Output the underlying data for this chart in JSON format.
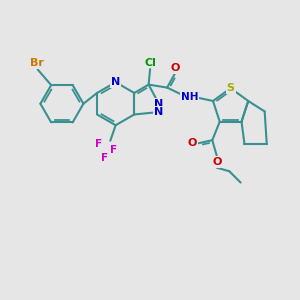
{
  "background_color": "#e6e6e6",
  "bond_color": "#3a9090",
  "bond_width": 1.5,
  "atoms": {
    "Br": {
      "color": "#cc7700"
    },
    "N": {
      "color": "#0000cc"
    },
    "Cl": {
      "color": "#009900"
    },
    "O": {
      "color": "#cc0000"
    },
    "S": {
      "color": "#aaaa00"
    },
    "F": {
      "color": "#cc00cc"
    },
    "H": {
      "color": "#555555"
    }
  },
  "figsize": [
    3.0,
    3.0
  ],
  "dpi": 100,
  "xlim": [
    0,
    10
  ],
  "ylim": [
    0,
    10
  ]
}
